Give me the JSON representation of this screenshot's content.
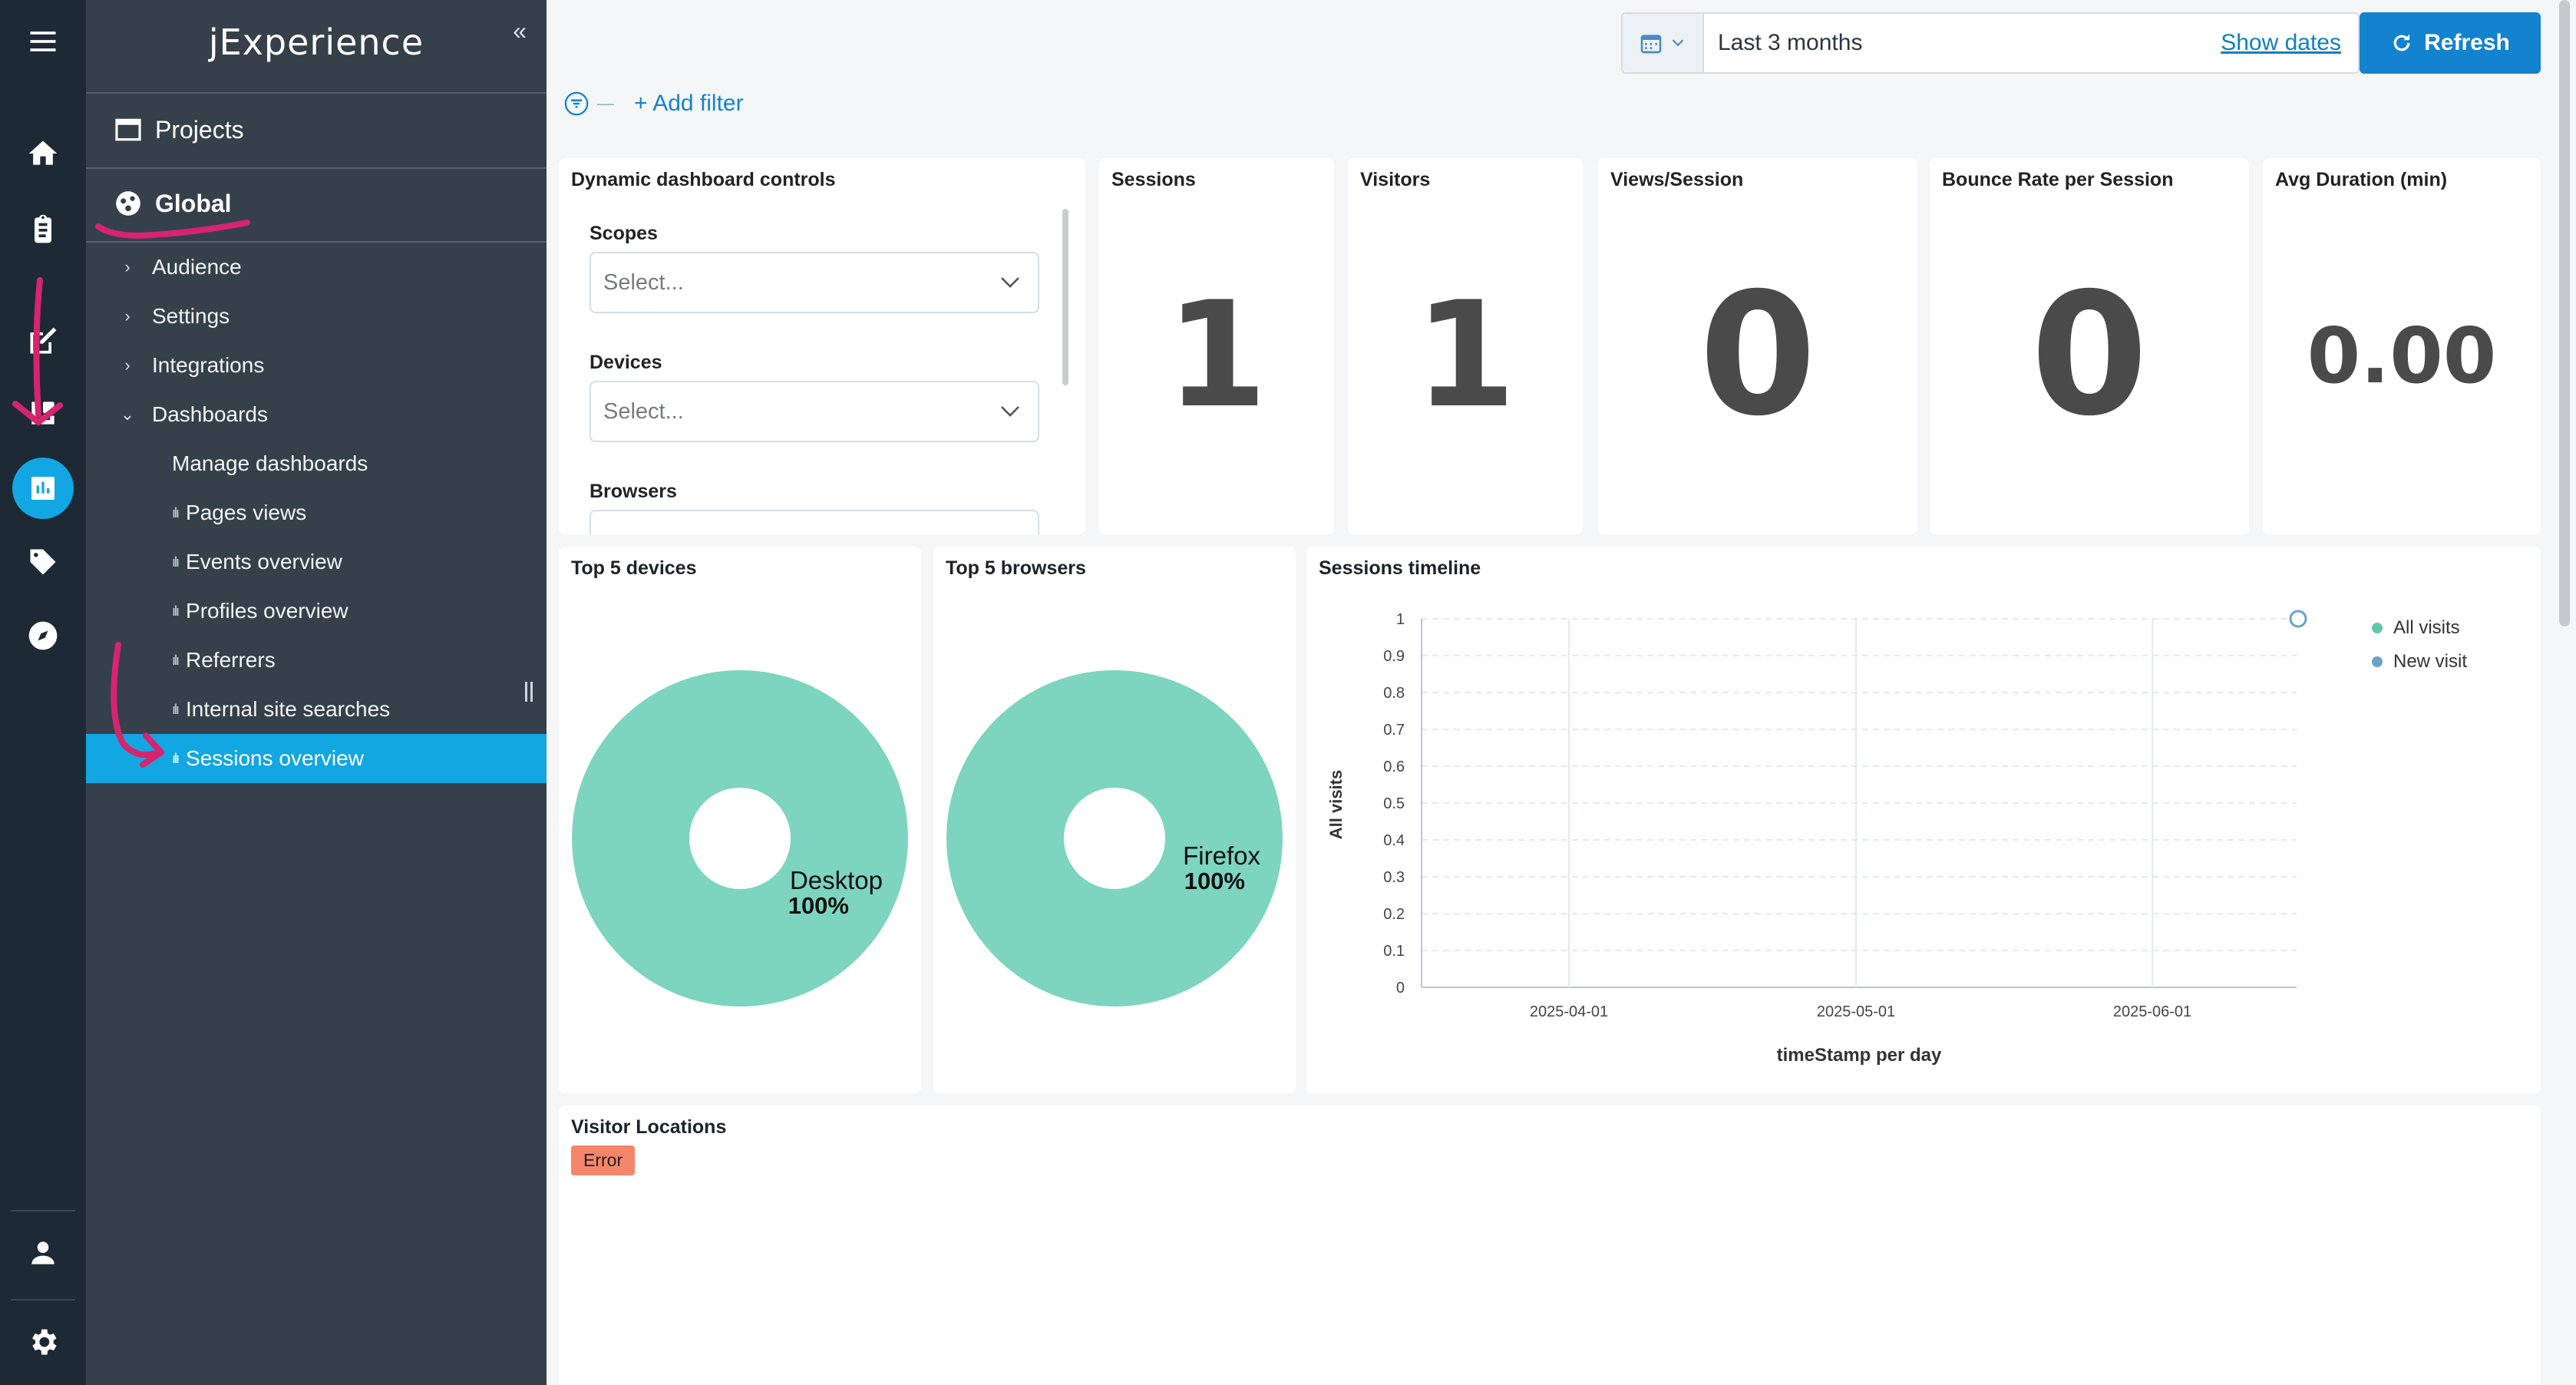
{
  "rail": {
    "items": [
      {
        "name": "menu-icon"
      },
      {
        "name": "home-icon"
      },
      {
        "name": "clipboard-icon"
      },
      {
        "name": "edit-icon"
      },
      {
        "name": "integrations-icon"
      },
      {
        "name": "analytics-icon",
        "active": true
      },
      {
        "name": "tag-icon"
      },
      {
        "name": "compass-icon"
      },
      {
        "name": "user-icon"
      },
      {
        "name": "settings-icon"
      }
    ]
  },
  "nav": {
    "brand": "jExperience",
    "collapse": "«",
    "projects": "Projects",
    "global": "Global",
    "items": [
      {
        "label": "Audience",
        "chevron": "›"
      },
      {
        "label": "Settings",
        "chevron": "›"
      },
      {
        "label": "Integrations",
        "chevron": "›"
      },
      {
        "label": "Dashboards",
        "chevron": "⌄"
      }
    ],
    "manage": "Manage dashboards",
    "dashboards": [
      "Pages views",
      "Events overview",
      "Profiles overview",
      "Referrers",
      "Internal site searches",
      "Sessions overview"
    ],
    "selected": "Sessions overview"
  },
  "toolbar": {
    "range": "Last 3 months",
    "show_dates": "Show dates",
    "refresh": "Refresh",
    "add_filter": "+ Add filter"
  },
  "controls": {
    "title": "Dynamic dashboard controls",
    "scopes_label": "Scopes",
    "scopes_placeholder": "Select...",
    "devices_label": "Devices",
    "devices_placeholder": "Select...",
    "browsers_label": "Browsers"
  },
  "kpis": [
    {
      "title": "Sessions",
      "value": "1"
    },
    {
      "title": "Visitors",
      "value": "1"
    },
    {
      "title": "Views/Session",
      "value": "0"
    },
    {
      "title": "Bounce Rate per Session",
      "value": "0"
    },
    {
      "title": "Avg Duration (min)",
      "value": "0.00"
    }
  ],
  "devices": {
    "title": "Top 5 devices",
    "label": "Desktop",
    "pct": "100%"
  },
  "browsers": {
    "title": "Top 5 browsers",
    "label": "Firefox",
    "pct": "100%"
  },
  "timeline": {
    "title": "Sessions timeline",
    "ylabel": "All visits",
    "xlabel": "timeStamp per day",
    "yticks": [
      "1",
      "0.9",
      "0.8",
      "0.7",
      "0.6",
      "0.5",
      "0.4",
      "0.3",
      "0.2",
      "0.1",
      "0"
    ],
    "xticks": [
      "2025-04-01",
      "2025-05-01",
      "2025-06-01"
    ],
    "legend": [
      {
        "label": "All visits",
        "color": "#5ec7a8"
      },
      {
        "label": "New visit",
        "color": "#6aa2c8"
      }
    ]
  },
  "locations": {
    "title": "Visitor Locations",
    "error": "Error"
  },
  "colors": {
    "accent": "#12a6e2",
    "primary_button": "#1383d0",
    "pie": "#7dd5bf",
    "annotation": "#d6246e"
  }
}
